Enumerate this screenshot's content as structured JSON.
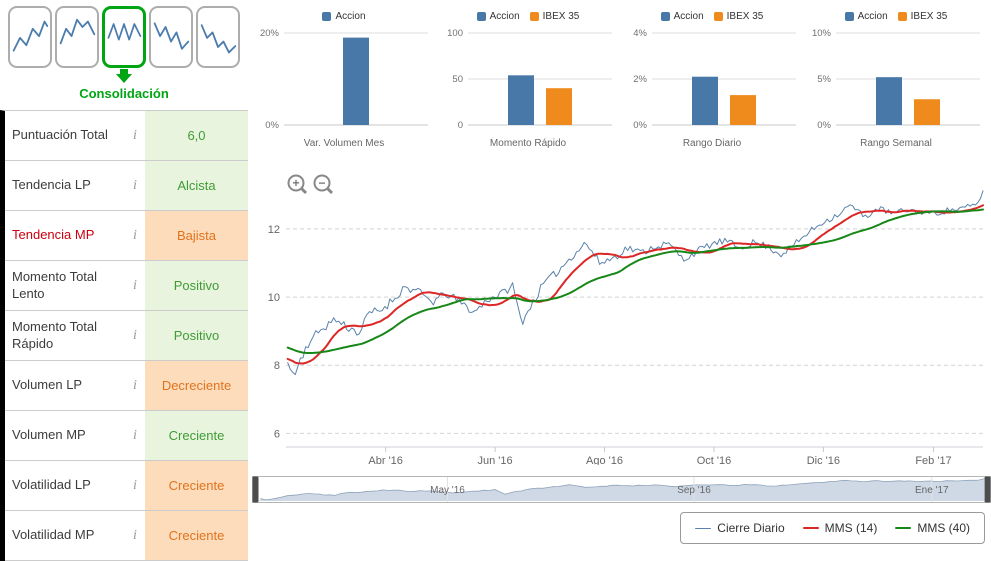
{
  "colors": {
    "accent_blue": "#4878a8",
    "accent_orange": "#ef8a1c",
    "green_text": "#3f9c35",
    "green_bg": "#e8f4de",
    "orange_text": "#e2731c",
    "orange_bg": "#fcdcbb",
    "red_label": "#cc0011",
    "phase_green": "#00a513",
    "sparkline": "#4b7cad",
    "nav_fill": "#cfd9e6",
    "nav_line": "#8ea3ba"
  },
  "icons": {
    "zoom_in": "+",
    "zoom_out": "−",
    "info": "i"
  },
  "sidebar": {
    "phase_label": "Consolidación",
    "info_icon": "i",
    "phases": [
      {
        "name": "uptrend"
      },
      {
        "name": "peak"
      },
      {
        "name": "consolidation",
        "active": true
      },
      {
        "name": "downtrend"
      },
      {
        "name": "bottom"
      }
    ],
    "rows": [
      {
        "label": "Puntuación Total",
        "value": "6,0",
        "state": "green"
      },
      {
        "label": "Tendencia LP",
        "value": "Alcista",
        "state": "green"
      },
      {
        "label": "Tendencia MP",
        "value": "Bajista",
        "state": "orange",
        "label_highlight": true
      },
      {
        "label": "Momento Total Lento",
        "value": "Positivo",
        "state": "green"
      },
      {
        "label": "Momento Total Rápido",
        "value": "Positivo",
        "state": "green"
      },
      {
        "label": "Volumen LP",
        "value": "Decreciente",
        "state": "orange"
      },
      {
        "label": "Volumen MP",
        "value": "Creciente",
        "state": "green"
      },
      {
        "label": "Volatilidad LP",
        "value": "Creciente",
        "state": "orange"
      },
      {
        "label": "Volatilidad MP",
        "value": "Creciente",
        "state": "orange"
      }
    ]
  },
  "chart_data": [
    {
      "type": "bar",
      "id": "var-volumen-mes",
      "title": "Var. Volumen Mes",
      "ylim": [
        0,
        20
      ],
      "yticks": [
        {
          "v": 0,
          "label": "0%"
        },
        {
          "v": 20,
          "label": "20%"
        }
      ],
      "series": [
        {
          "name": "Accion",
          "color": "#4878a8",
          "value": 19
        }
      ]
    },
    {
      "type": "bar",
      "id": "momento-rapido",
      "title": "Momento Rápido",
      "ylim": [
        0,
        100
      ],
      "yticks": [
        {
          "v": 0,
          "label": "0"
        },
        {
          "v": 50,
          "label": "50"
        },
        {
          "v": 100,
          "label": "100"
        }
      ],
      "series": [
        {
          "name": "Accion",
          "color": "#4878a8",
          "value": 54
        },
        {
          "name": "IBEX 35",
          "color": "#ef8a1c",
          "value": 40
        }
      ]
    },
    {
      "type": "bar",
      "id": "rango-diario",
      "title": "Rango Diario",
      "ylim": [
        0,
        4
      ],
      "yticks": [
        {
          "v": 0,
          "label": "0%"
        },
        {
          "v": 2,
          "label": "2%"
        },
        {
          "v": 4,
          "label": "4%"
        }
      ],
      "series": [
        {
          "name": "Accion",
          "color": "#4878a8",
          "value": 2.1
        },
        {
          "name": "IBEX 35",
          "color": "#ef8a1c",
          "value": 1.3
        }
      ]
    },
    {
      "type": "bar",
      "id": "rango-semanal",
      "title": "Rango Semanal",
      "ylim": [
        0,
        10
      ],
      "yticks": [
        {
          "v": 0,
          "label": "0%"
        },
        {
          "v": 5,
          "label": "5%"
        },
        {
          "v": 10,
          "label": "10%"
        }
      ],
      "series": [
        {
          "name": "Accion",
          "color": "#4878a8",
          "value": 5.2
        },
        {
          "name": "IBEX 35",
          "color": "#ef8a1c",
          "value": 2.8
        }
      ]
    },
    {
      "type": "line",
      "id": "precio",
      "title": "",
      "ylim": [
        5.6,
        13.7
      ],
      "yticks": [
        6,
        8,
        10,
        12
      ],
      "xticks": [
        {
          "label": "Abr '16",
          "t": 0.143
        },
        {
          "label": "Jun '16",
          "t": 0.3
        },
        {
          "label": "Ago '16",
          "t": 0.457
        },
        {
          "label": "Oct '16",
          "t": 0.614
        },
        {
          "label": "Dic '16",
          "t": 0.771
        },
        {
          "label": "Feb '17",
          "t": 0.929
        }
      ],
      "noise": 0.11,
      "series": [
        {
          "name": "Cierre Diario",
          "color": "#5b82ab",
          "anchors": [
            [
              -0.17,
              9.1
            ],
            [
              -0.12,
              8.85
            ],
            [
              -0.07,
              8.55
            ],
            [
              -0.03,
              8.25
            ],
            [
              0,
              8.05
            ],
            [
              0.012,
              7.72
            ],
            [
              0.03,
              8.6
            ],
            [
              0.05,
              9.05
            ],
            [
              0.07,
              9.35
            ],
            [
              0.09,
              9.1
            ],
            [
              0.105,
              8.95
            ],
            [
              0.12,
              9.55
            ],
            [
              0.135,
              9.6
            ],
            [
              0.155,
              9.95
            ],
            [
              0.17,
              10.3
            ],
            [
              0.19,
              10.15
            ],
            [
              0.21,
              9.85
            ],
            [
              0.23,
              10.1
            ],
            [
              0.25,
              9.85
            ],
            [
              0.27,
              9.55
            ],
            [
              0.29,
              9.95
            ],
            [
              0.31,
              10.1
            ],
            [
              0.325,
              10.35
            ],
            [
              0.338,
              9.25
            ],
            [
              0.35,
              9.7
            ],
            [
              0.37,
              10.4
            ],
            [
              0.39,
              10.75
            ],
            [
              0.41,
              11.2
            ],
            [
              0.43,
              11.6
            ],
            [
              0.45,
              11.0
            ],
            [
              0.47,
              11.15
            ],
            [
              0.49,
              11.45
            ],
            [
              0.51,
              11.3
            ],
            [
              0.53,
              11.5
            ],
            [
              0.55,
              11.55
            ],
            [
              0.57,
              11.1
            ],
            [
              0.59,
              11.35
            ],
            [
              0.61,
              11.55
            ],
            [
              0.63,
              11.65
            ],
            [
              0.65,
              11.45
            ],
            [
              0.67,
              11.6
            ],
            [
              0.69,
              11.5
            ],
            [
              0.71,
              11.25
            ],
            [
              0.73,
              11.55
            ],
            [
              0.75,
              11.9
            ],
            [
              0.77,
              12.2
            ],
            [
              0.79,
              12.4
            ],
            [
              0.81,
              12.7
            ],
            [
              0.83,
              12.35
            ],
            [
              0.85,
              12.6
            ],
            [
              0.87,
              12.45
            ],
            [
              0.89,
              12.55
            ],
            [
              0.91,
              12.5
            ],
            [
              0.93,
              12.45
            ],
            [
              0.95,
              12.55
            ],
            [
              0.97,
              12.6
            ],
            [
              0.99,
              12.7
            ],
            [
              1,
              13.05
            ]
          ]
        },
        {
          "name": "MMS (14)",
          "color": "#dd2727",
          "derived": "sma",
          "window": 14
        },
        {
          "name": "MMS (40)",
          "color": "#178717",
          "derived": "sma",
          "window": 40
        }
      ],
      "navigator": {
        "xticks": [
          {
            "label": "May '16",
            "t": 0.26
          },
          {
            "label": "Sep '16",
            "t": 0.6
          },
          {
            "label": "Ene '17",
            "t": 0.928
          }
        ]
      }
    }
  ],
  "legend": {
    "items": [
      {
        "label": "Cierre Diario",
        "color": "#5b82ab",
        "thickness": 1
      },
      {
        "label": "MMS (14)",
        "color": "#dd2727",
        "thickness": 2
      },
      {
        "label": "MMS (40)",
        "color": "#178717",
        "thickness": 2
      }
    ]
  }
}
